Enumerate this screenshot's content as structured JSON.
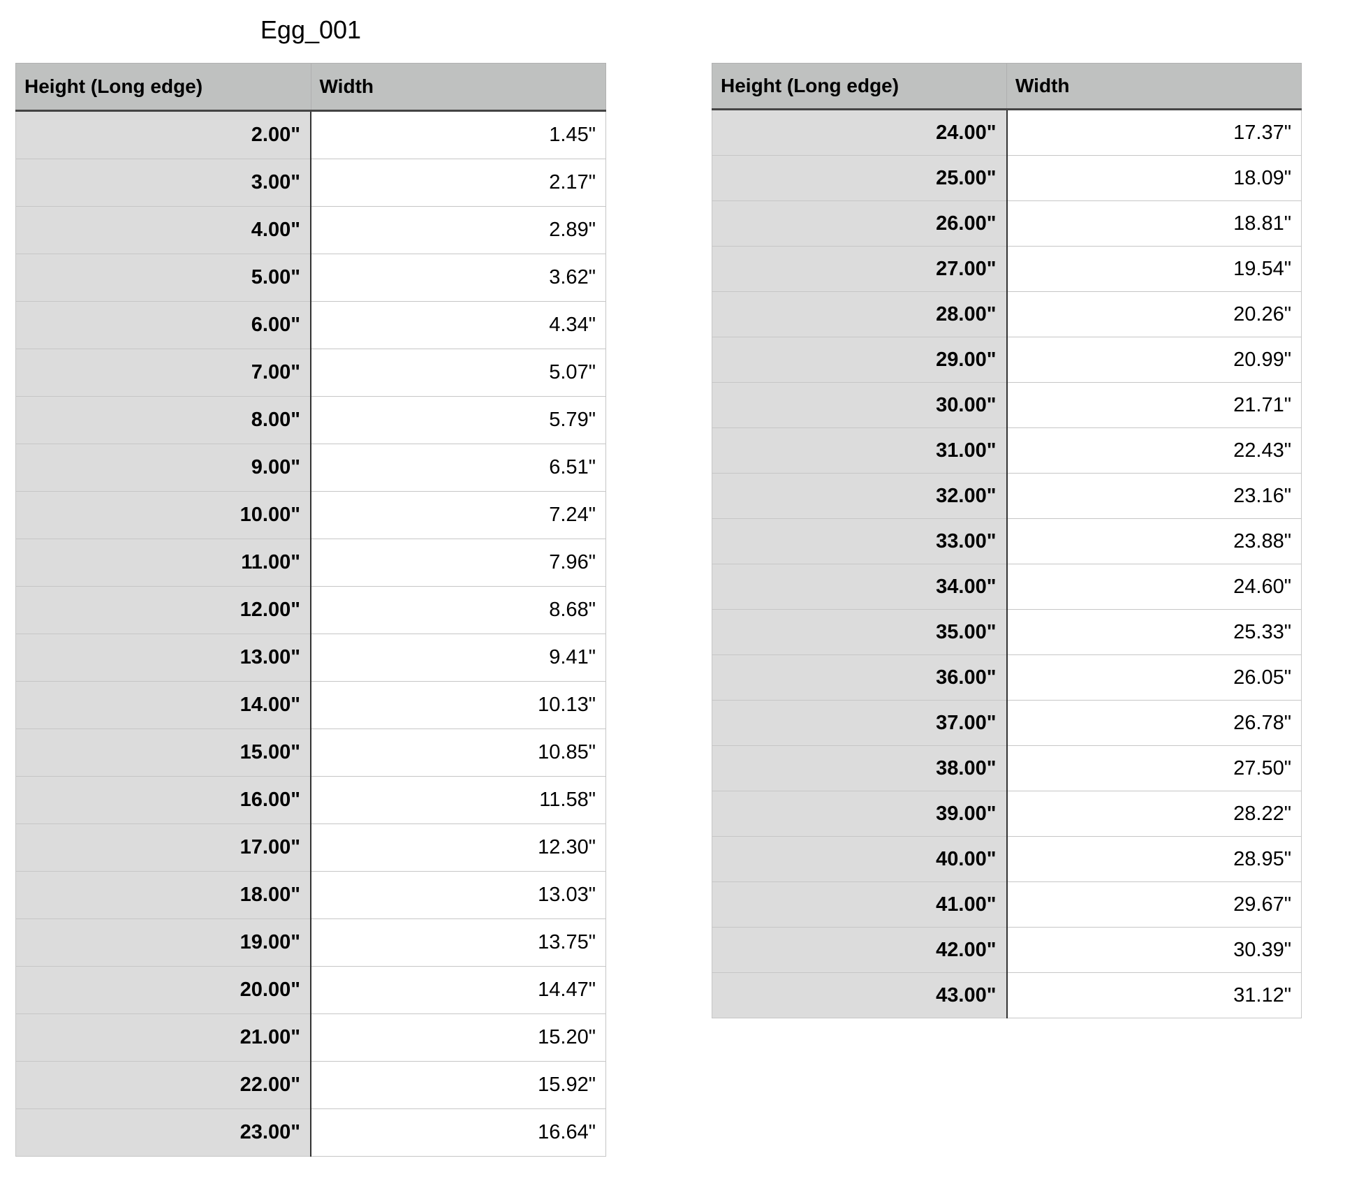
{
  "title": "Egg_001",
  "headers": {
    "height": "Height (Long edge)",
    "width": "Width"
  },
  "tables": [
    {
      "rows": [
        [
          "2.00\"",
          "1.45\""
        ],
        [
          "3.00\"",
          "2.17\""
        ],
        [
          "4.00\"",
          "2.89\""
        ],
        [
          "5.00\"",
          "3.62\""
        ],
        [
          "6.00\"",
          "4.34\""
        ],
        [
          "7.00\"",
          "5.07\""
        ],
        [
          "8.00\"",
          "5.79\""
        ],
        [
          "9.00\"",
          "6.51\""
        ],
        [
          "10.00\"",
          "7.24\""
        ],
        [
          "11.00\"",
          "7.96\""
        ],
        [
          "12.00\"",
          "8.68\""
        ],
        [
          "13.00\"",
          "9.41\""
        ],
        [
          "14.00\"",
          "10.13\""
        ],
        [
          "15.00\"",
          "10.85\""
        ],
        [
          "16.00\"",
          "11.58\""
        ],
        [
          "17.00\"",
          "12.30\""
        ],
        [
          "18.00\"",
          "13.03\""
        ],
        [
          "19.00\"",
          "13.75\""
        ],
        [
          "20.00\"",
          "14.47\""
        ],
        [
          "21.00\"",
          "15.20\""
        ],
        [
          "22.00\"",
          "15.92\""
        ],
        [
          "23.00\"",
          "16.64\""
        ]
      ]
    },
    {
      "rows": [
        [
          "24.00\"",
          "17.37\""
        ],
        [
          "25.00\"",
          "18.09\""
        ],
        [
          "26.00\"",
          "18.81\""
        ],
        [
          "27.00\"",
          "19.54\""
        ],
        [
          "28.00\"",
          "20.26\""
        ],
        [
          "29.00\"",
          "20.99\""
        ],
        [
          "30.00\"",
          "21.71\""
        ],
        [
          "31.00\"",
          "22.43\""
        ],
        [
          "32.00\"",
          "23.16\""
        ],
        [
          "33.00\"",
          "23.88\""
        ],
        [
          "34.00\"",
          "24.60\""
        ],
        [
          "35.00\"",
          "25.33\""
        ],
        [
          "36.00\"",
          "26.05\""
        ],
        [
          "37.00\"",
          "26.78\""
        ],
        [
          "38.00\"",
          "27.50\""
        ],
        [
          "39.00\"",
          "28.22\""
        ],
        [
          "40.00\"",
          "28.95\""
        ],
        [
          "41.00\"",
          "29.67\""
        ],
        [
          "42.00\"",
          "30.39\""
        ],
        [
          "43.00\"",
          "31.12\""
        ]
      ]
    }
  ]
}
